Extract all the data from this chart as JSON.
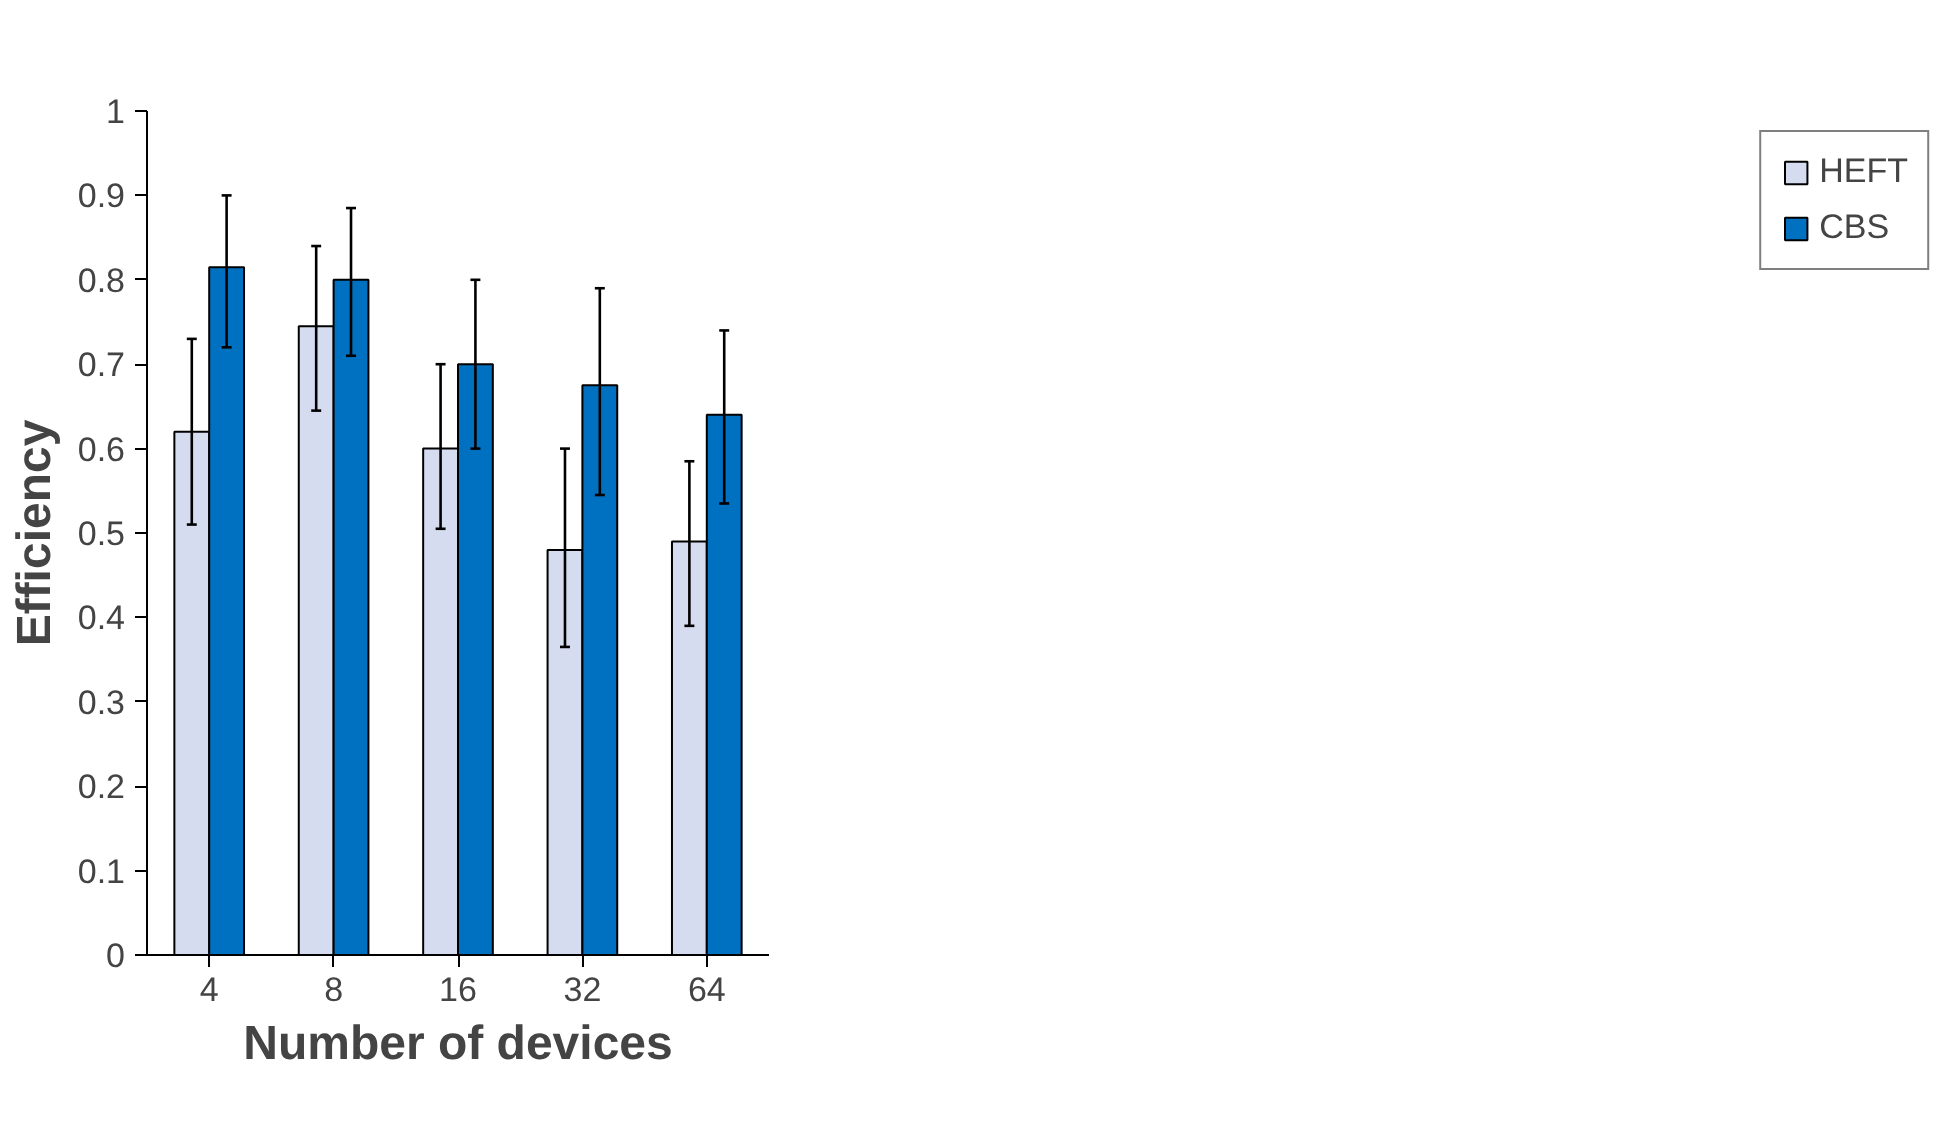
{
  "chart_data": {
    "type": "bar",
    "xlabel": "Number of devices",
    "ylabel": "Efficiency",
    "categories": [
      "4",
      "8",
      "16",
      "32",
      "64"
    ],
    "series": [
      {
        "name": "HEFT",
        "color": "#d6dcf0",
        "values": [
          0.62,
          0.745,
          0.6,
          0.48,
          0.49
        ],
        "errors": [
          [
            0.51,
            0.73
          ],
          [
            0.645,
            0.84
          ],
          [
            0.505,
            0.7
          ],
          [
            0.365,
            0.6
          ],
          [
            0.39,
            0.585
          ]
        ]
      },
      {
        "name": "CBS",
        "color": "#0070c0",
        "values": [
          0.815,
          0.8,
          0.7,
          0.675,
          0.64
        ],
        "errors": [
          [
            0.72,
            0.9
          ],
          [
            0.71,
            0.885
          ],
          [
            0.6,
            0.8
          ],
          [
            0.545,
            0.79
          ],
          [
            0.535,
            0.74
          ]
        ]
      }
    ],
    "ylim": [
      0,
      1
    ],
    "yticks": [
      0,
      0.1,
      0.2,
      0.3,
      0.4,
      0.5,
      0.6,
      0.7,
      0.8,
      0.9,
      1
    ],
    "grid": false,
    "legend": "right"
  }
}
